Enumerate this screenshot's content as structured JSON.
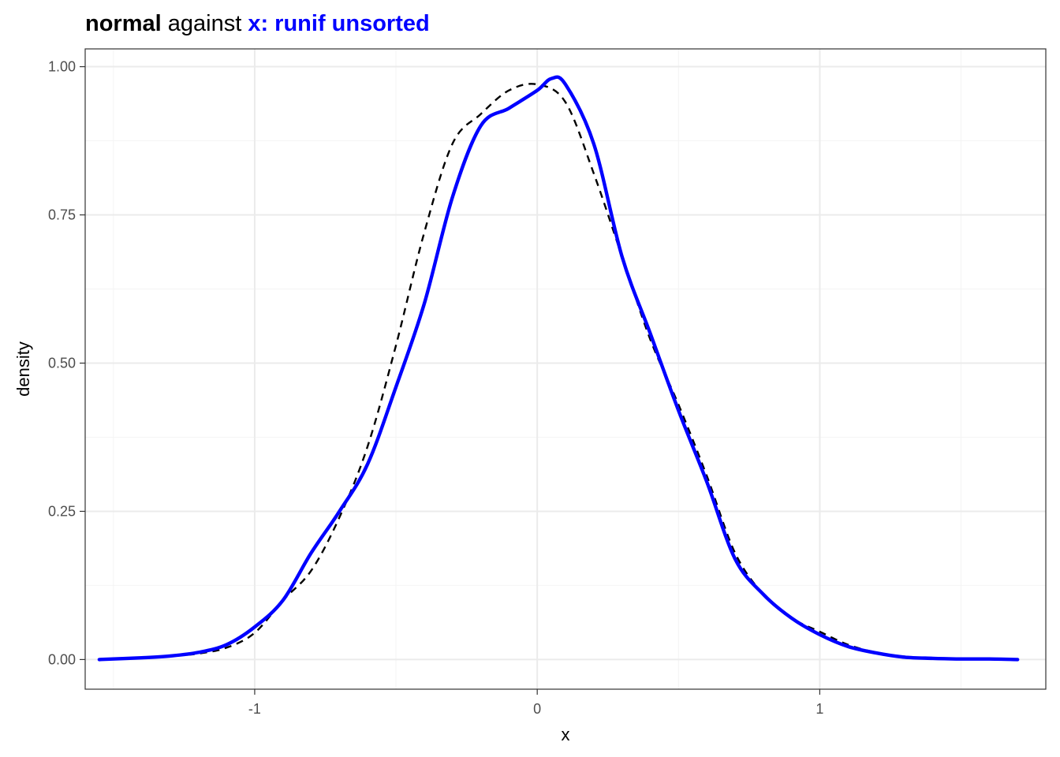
{
  "chart_data": {
    "type": "line",
    "title": {
      "part1": "normal",
      "part2": " against ",
      "part3": "x: runif unsorted"
    },
    "xlabel": "x",
    "ylabel": "density",
    "xlim": [
      -1.6,
      1.8
    ],
    "ylim": [
      -0.05,
      1.03
    ],
    "x_ticks": [
      -1,
      0,
      1
    ],
    "x_tick_labels": [
      "-1",
      "0",
      "1"
    ],
    "y_ticks": [
      0,
      0.25,
      0.5,
      0.75,
      1
    ],
    "y_tick_labels": [
      "0.00",
      "0.25",
      "0.50",
      "0.75",
      "1.00"
    ],
    "grid": true,
    "legend": "none",
    "series": [
      {
        "style": "dashed",
        "color": "#000000",
        "x": [
          -1.55,
          -1.4,
          -1.3,
          -1.2,
          -1.1,
          -1.0,
          -0.9,
          -0.8,
          -0.7,
          -0.6,
          -0.5,
          -0.4,
          -0.3,
          -0.2,
          -0.1,
          0.0,
          0.1,
          0.2,
          0.3,
          0.4,
          0.5,
          0.6,
          0.7,
          0.8,
          0.9,
          1.0,
          1.1,
          1.2,
          1.3,
          1.4,
          1.5,
          1.6,
          1.7
        ],
        "y": [
          0.0,
          0.003,
          0.006,
          0.01,
          0.02,
          0.045,
          0.1,
          0.15,
          0.24,
          0.36,
          0.53,
          0.72,
          0.87,
          0.92,
          0.96,
          0.97,
          0.94,
          0.82,
          0.68,
          0.54,
          0.43,
          0.31,
          0.18,
          0.11,
          0.07,
          0.047,
          0.025,
          0.012,
          0.005,
          0.002,
          0.001,
          0.0005,
          0.0
        ]
      },
      {
        "style": "solid",
        "color": "#0000ff",
        "x": [
          -1.55,
          -1.4,
          -1.3,
          -1.2,
          -1.1,
          -1.0,
          -0.9,
          -0.8,
          -0.7,
          -0.6,
          -0.5,
          -0.4,
          -0.3,
          -0.2,
          -0.1,
          0.0,
          0.05,
          0.1,
          0.2,
          0.3,
          0.4,
          0.5,
          0.6,
          0.7,
          0.8,
          0.9,
          1.0,
          1.1,
          1.2,
          1.3,
          1.4,
          1.5,
          1.6,
          1.7
        ],
        "y": [
          0.0,
          0.003,
          0.006,
          0.012,
          0.025,
          0.055,
          0.1,
          0.18,
          0.25,
          0.33,
          0.46,
          0.6,
          0.78,
          0.9,
          0.93,
          0.96,
          0.98,
          0.97,
          0.87,
          0.68,
          0.55,
          0.42,
          0.3,
          0.17,
          0.11,
          0.07,
          0.042,
          0.022,
          0.011,
          0.004,
          0.002,
          0.001,
          0.001,
          0.0
        ]
      }
    ],
    "colors": {
      "panel_border": "#333333",
      "grid_major": "#ebebeb",
      "grid_minor": "#f4f4f4",
      "title_emph": "#0000ff"
    }
  }
}
